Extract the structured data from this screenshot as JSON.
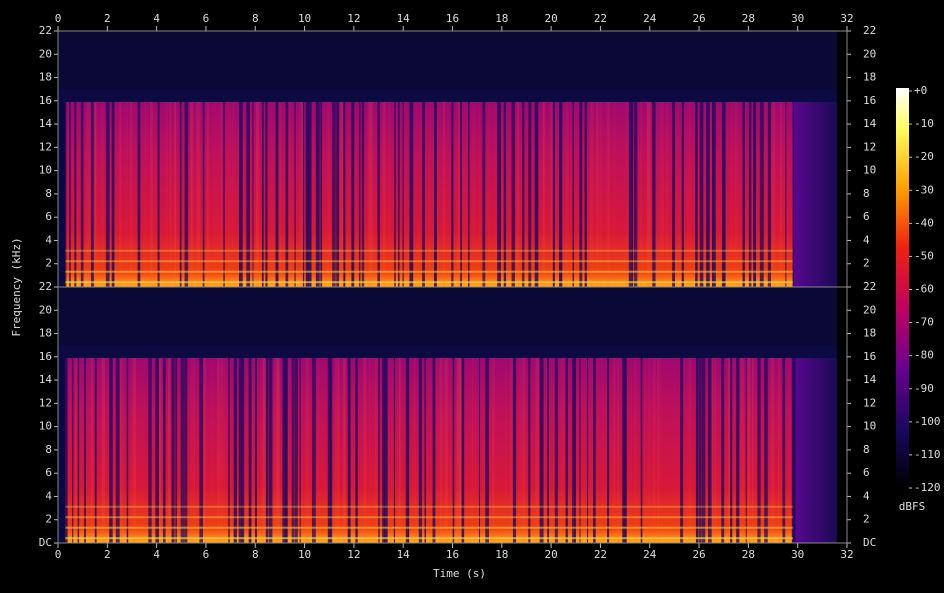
{
  "chart_data": {
    "type": "spectrogram",
    "xlabel": "Time (s)",
    "ylabel": "Frequency (kHz)",
    "xlim": [
      0,
      32
    ],
    "xticks": [
      0,
      2,
      4,
      6,
      8,
      10,
      12,
      14,
      16,
      18,
      20,
      22,
      24,
      26,
      28,
      30,
      32
    ],
    "panels": [
      {
        "ylim": [
          0,
          22
        ],
        "yticks": [
          2,
          4,
          6,
          8,
          10,
          12,
          14,
          16,
          18,
          20,
          22
        ]
      },
      {
        "ylim": [
          0,
          22
        ],
        "yticks": [
          {
            "value": 0,
            "label": "DC"
          },
          2,
          4,
          6,
          8,
          10,
          12,
          14,
          16,
          18,
          20,
          22
        ]
      }
    ],
    "colorbar": {
      "label": "dBFS",
      "lim": [
        -120,
        0
      ],
      "ticks": [
        {
          "value": 0,
          "label": "+0"
        },
        -10,
        -20,
        -30,
        -40,
        -50,
        -60,
        -70,
        -80,
        -90,
        -100,
        -110,
        -120
      ]
    }
  }
}
